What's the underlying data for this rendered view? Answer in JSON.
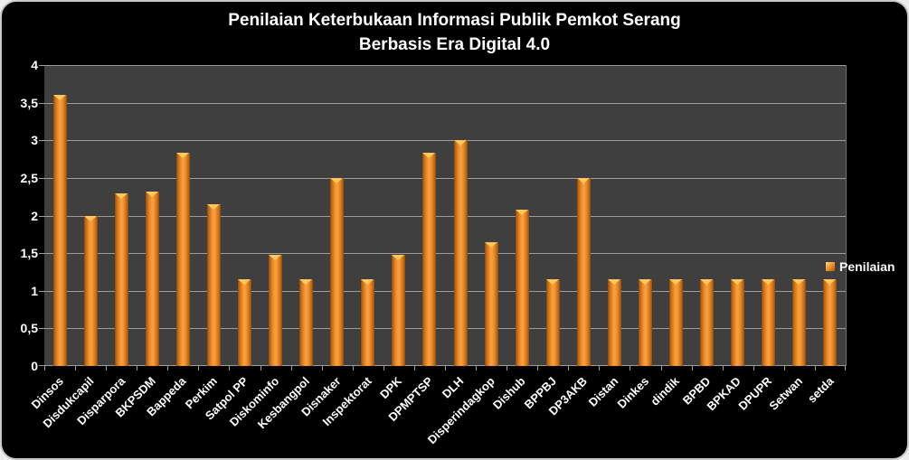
{
  "chart_data": {
    "type": "bar",
    "title": "Penilaian Keterbukaan Informasi Publik Pemkot Serang Berbasis Era Digital 4.0",
    "title_lines": [
      "Penilaian Keterbukaan Informasi Publik Pemkot Serang",
      "Berbasis Era Digital 4.0"
    ],
    "categories": [
      "Dinsos",
      "Disdukcapil",
      "Disparpora",
      "BKPSDM",
      "Bappeda",
      "Perkim",
      "Satpol PP",
      "Diskominfo",
      "Kesbangpol",
      "Disnaker",
      "Inspektorat",
      "DPK",
      "DPMPTSP",
      "DLH",
      "Disperindagkop",
      "Dishub",
      "BPPBJ",
      "DP3AKB",
      "Distan",
      "Dinkes",
      "dindik",
      "BPBD",
      "BPKAD",
      "DPUPR",
      "Setwan",
      "setda"
    ],
    "series": [
      {
        "name": "Penilaian",
        "values": [
          3.6,
          2.0,
          2.3,
          2.32,
          2.83,
          2.15,
          1.15,
          1.48,
          1.15,
          2.5,
          1.15,
          1.48,
          2.83,
          3.0,
          1.65,
          2.08,
          1.15,
          2.5,
          1.15,
          1.15,
          1.15,
          1.15,
          1.15,
          1.15,
          1.15,
          1.15
        ]
      }
    ],
    "xlabel": "",
    "ylabel": "",
    "ylim": [
      0,
      4
    ],
    "ytick_step": 0.5,
    "ytick_labels": [
      "0",
      "0,5",
      "1",
      "1,5",
      "2",
      "2,5",
      "3",
      "3,5",
      "4"
    ],
    "grid": true,
    "legend_position": "right",
    "colors": {
      "chart_background": "#000000",
      "plot_background": "#3f3f3f",
      "gridline": "#9d9d9d",
      "bar_center": "#fba142",
      "bar_edge": "#8a4a0c",
      "bar_cap_highlight": "#ffc95f",
      "text": "#ffffff"
    }
  }
}
